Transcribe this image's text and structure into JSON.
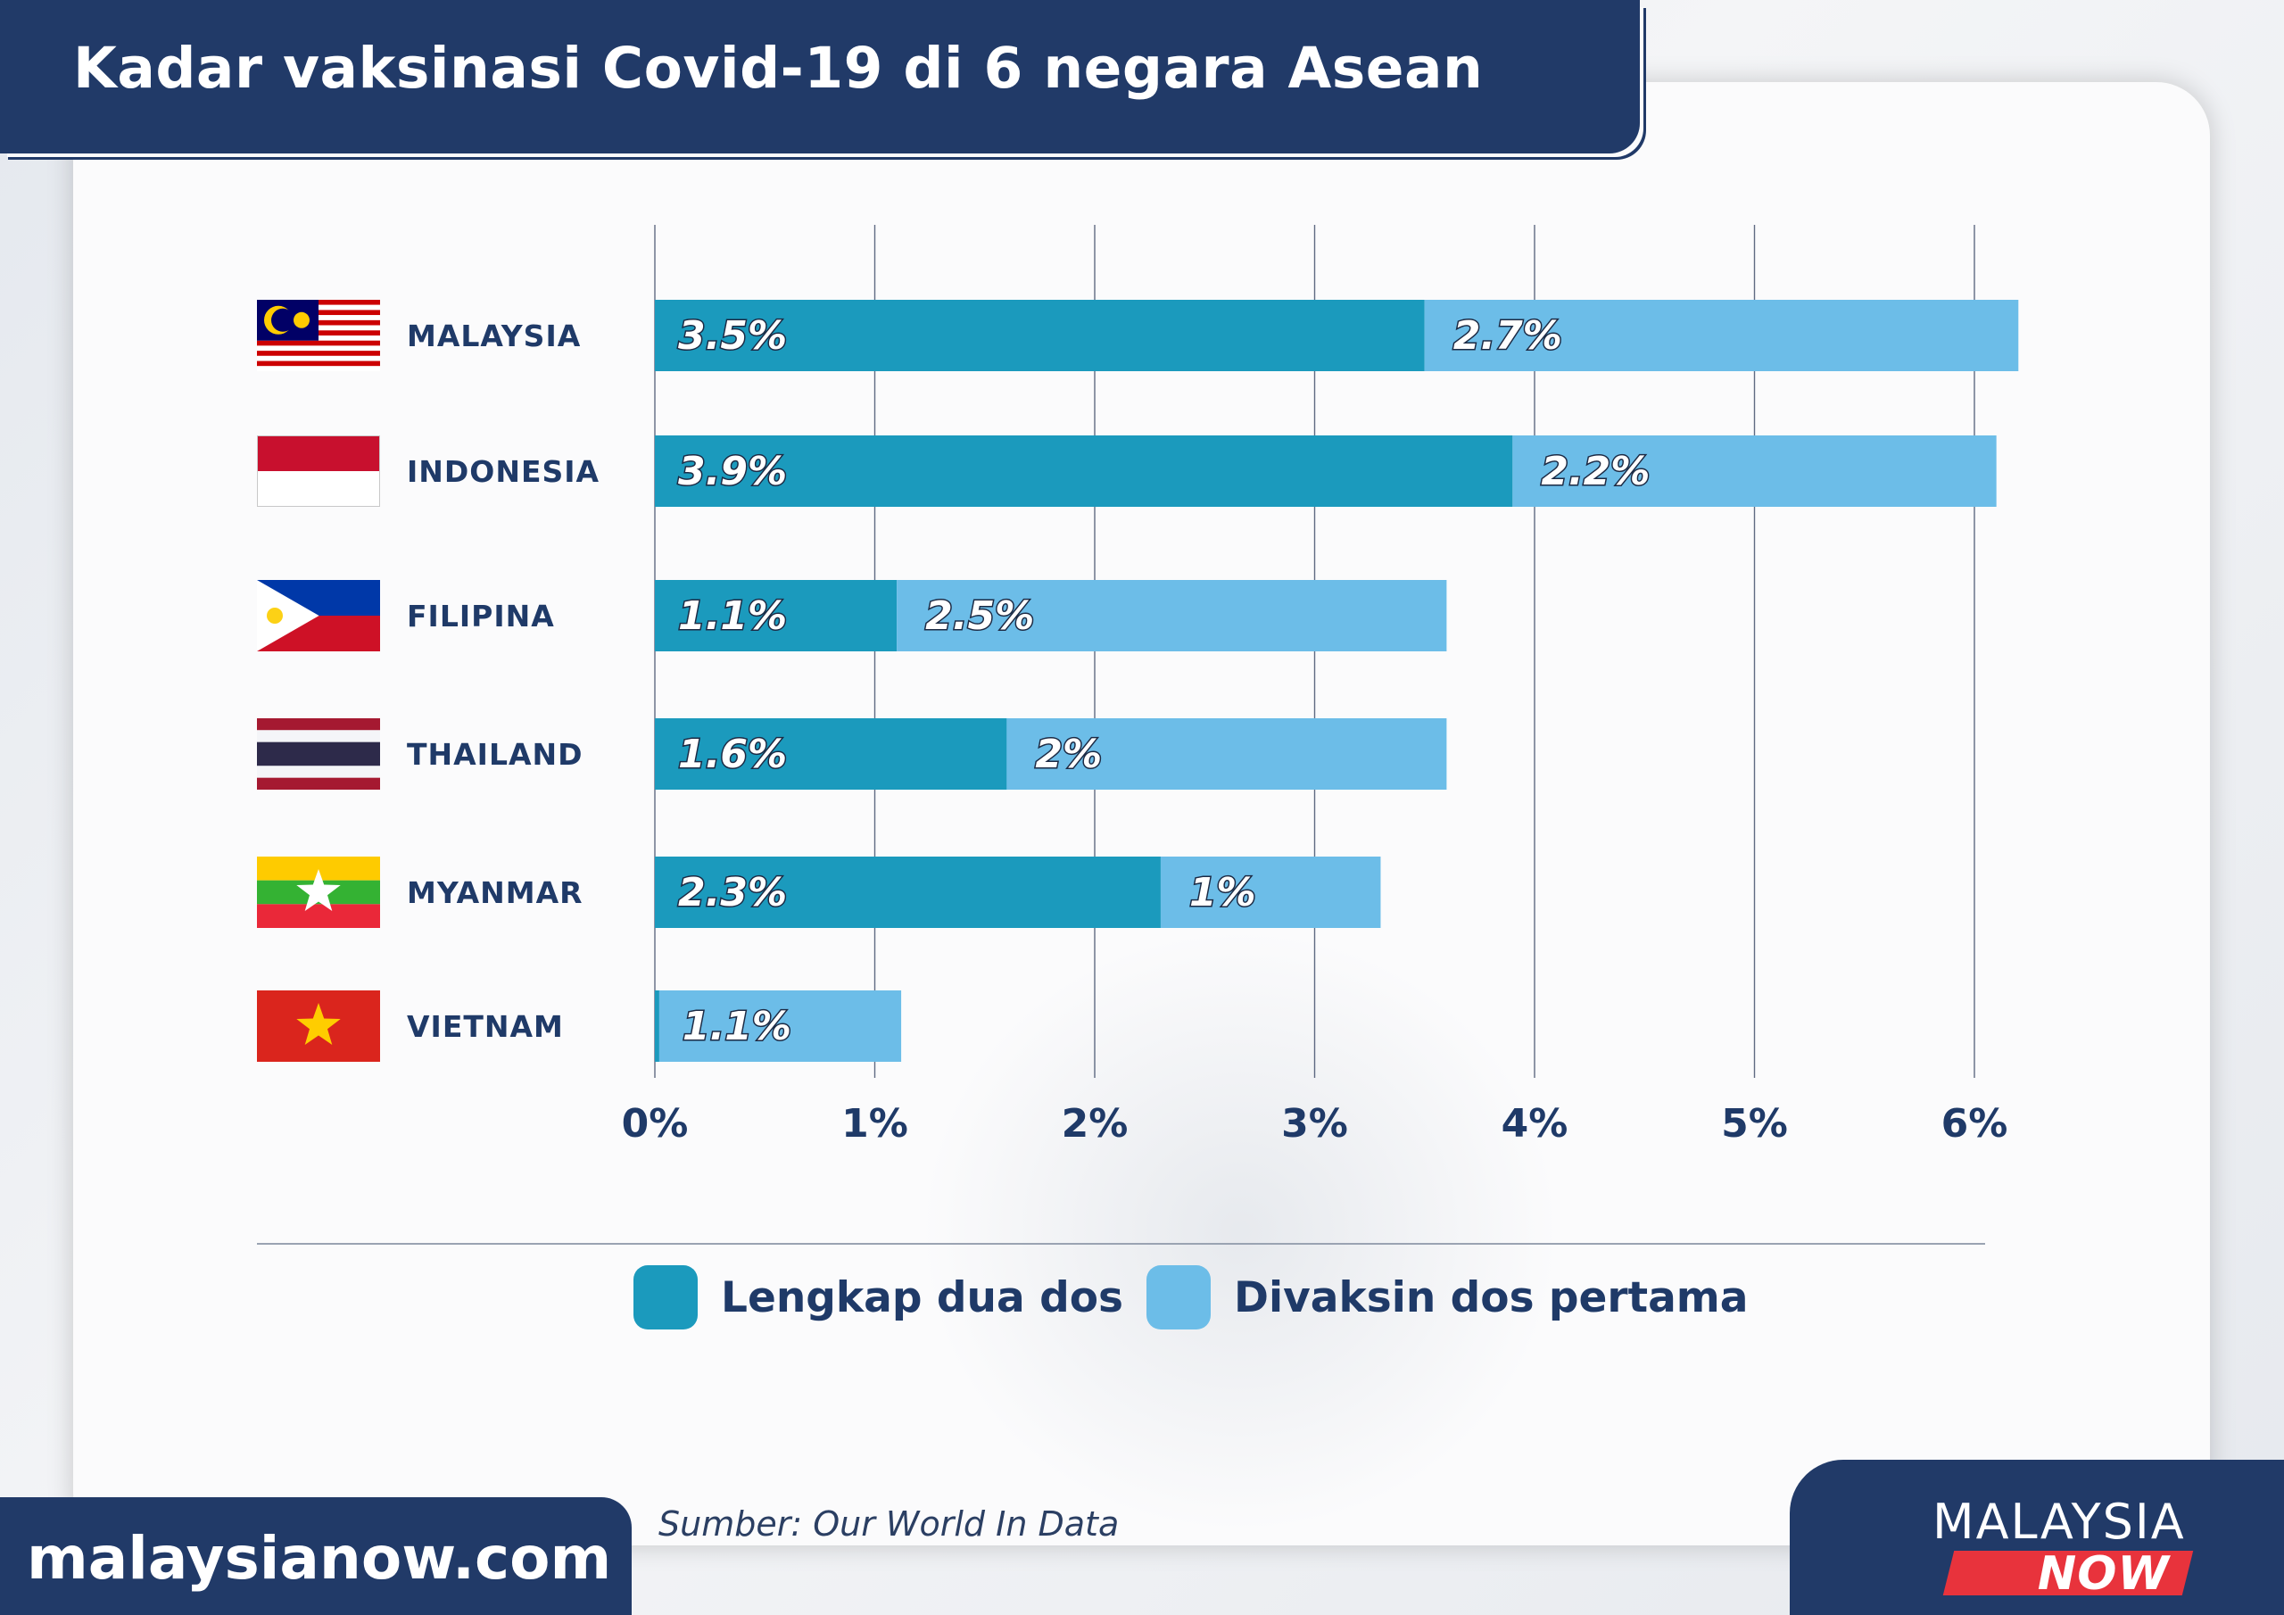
{
  "title": "Kadar vaksinasi Covid-19 di 6 negara Asean",
  "source": "Sumber: Our World In Data",
  "footer": {
    "website": "malaysianow.com",
    "logo_line1": "MALAYSIA",
    "logo_line2": "NOW"
  },
  "colors": {
    "full_dose": "#1b9abd",
    "first_dose": "#6cbde8",
    "navy": "#213a68",
    "red": "#e8333c"
  },
  "chart_data": {
    "type": "bar",
    "orientation": "horizontal",
    "stacked": true,
    "categories": [
      "MALAYSIA",
      "INDONESIA",
      "FILIPINA",
      "THAILAND",
      "MYANMAR",
      "VIETNAM"
    ],
    "flag_icons": [
      "malaysia-flag-icon",
      "indonesia-flag-icon",
      "philippines-flag-icon",
      "thailand-flag-icon",
      "myanmar-flag-icon",
      "vietnam-flag-icon"
    ],
    "series": [
      {
        "name": "Lengkap dua dos",
        "values": [
          3.5,
          3.9,
          1.1,
          1.6,
          2.3,
          0.02
        ],
        "labels": [
          "3.5%",
          "3.9%",
          "1.1%",
          "1.6%",
          "2.3%",
          ""
        ]
      },
      {
        "name": "Divaksin dos pertama",
        "values": [
          2.7,
          2.2,
          2.5,
          2.0,
          1.0,
          1.1
        ],
        "labels": [
          "2.7%",
          "2.2%",
          "2.5%",
          "2%",
          "1%",
          "1.1%"
        ]
      }
    ],
    "xlim": [
      0,
      6
    ],
    "xticks": [
      "0%",
      "1%",
      "2%",
      "3%",
      "4%",
      "5%",
      "6%"
    ],
    "grid": true,
    "legend_position": "bottom"
  }
}
